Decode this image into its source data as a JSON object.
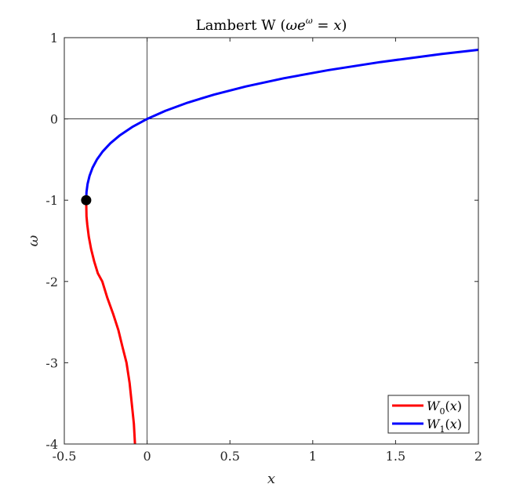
{
  "chart_data": {
    "type": "line",
    "title": "Lambert W (ωe^ω = x)",
    "xlabel": "x",
    "ylabel": "ω",
    "xlim": [
      -0.5,
      2
    ],
    "ylim": [
      -4,
      1
    ],
    "x_ticks": [
      "-0.5",
      "0",
      "0.5",
      "1",
      "1.5",
      "2"
    ],
    "y_ticks": [
      "1",
      "0",
      "-1",
      "-2",
      "-3",
      "-4"
    ],
    "grid": false,
    "legend": "bottom-right",
    "branch_point": {
      "x": -0.3679,
      "y": -1
    },
    "series": [
      {
        "name": "W0(x)",
        "color": "#ff0000",
        "points": [
          [
            -0.3679,
            -1.0
          ],
          [
            -0.366,
            -1.2
          ],
          [
            -0.3614,
            -1.3
          ],
          [
            -0.3521,
            -1.45
          ],
          [
            -0.3383,
            -1.6
          ],
          [
            -0.32,
            -1.75
          ],
          [
            -0.2975,
            -1.9
          ],
          [
            -0.2707,
            -2.0
          ],
          [
            -0.2405,
            -2.2
          ],
          [
            -0.205,
            -2.4
          ],
          [
            -0.1733,
            -2.6
          ],
          [
            -0.1494,
            -2.8
          ],
          [
            -0.1245,
            -3.0
          ],
          [
            -0.1057,
            -3.25
          ],
          [
            -0.0928,
            -3.5
          ],
          [
            -0.08,
            -3.75
          ],
          [
            -0.0733,
            -4.0
          ]
        ]
      },
      {
        "name": "W1(x)",
        "color": "#0000ff",
        "points": [
          [
            -0.3679,
            -1.0
          ],
          [
            -0.366,
            -0.9
          ],
          [
            -0.3595,
            -0.8
          ],
          [
            -0.3476,
            -0.7
          ],
          [
            -0.3293,
            -0.6
          ],
          [
            -0.3033,
            -0.5
          ],
          [
            -0.2681,
            -0.4
          ],
          [
            -0.2222,
            -0.3
          ],
          [
            -0.1637,
            -0.2
          ],
          [
            -0.0905,
            -0.1
          ],
          [
            0.0,
            0.0
          ],
          [
            0.1105,
            0.1
          ],
          [
            0.2443,
            0.2
          ],
          [
            0.4049,
            0.3
          ],
          [
            0.5967,
            0.4
          ],
          [
            0.8244,
            0.5
          ],
          [
            1.0933,
            0.6
          ],
          [
            1.4096,
            0.7
          ],
          [
            1.7804,
            0.8
          ],
          [
            2.0,
            0.85
          ]
        ]
      }
    ]
  }
}
